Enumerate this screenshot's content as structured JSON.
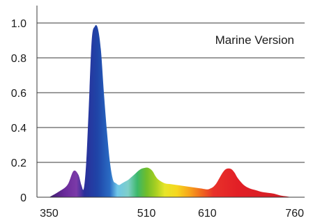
{
  "chart_data": {
    "type": "area",
    "annotation": "Marine Version",
    "x_ticks": [
      350,
      510,
      610,
      760
    ],
    "y_ticks": [
      0,
      0.2,
      0.4,
      0.6,
      0.8,
      1.0
    ],
    "y_tick_labels": [
      "0",
      "0.2",
      "0.4",
      "0.6",
      "0.8",
      "1.0"
    ],
    "xlim": [
      330,
      770
    ],
    "ylim": [
      0,
      1.1
    ],
    "grid": "horizontal",
    "series": [
      {
        "x": [
          350,
          365,
          380,
          390,
          398,
          403,
          407,
          411,
          415,
          420,
          425,
          430,
          435,
          440,
          445,
          450,
          455,
          460,
          465,
          470,
          475,
          480,
          490,
          500,
          510,
          515,
          520,
          525,
          530,
          540,
          550,
          560,
          570,
          580,
          590,
          600,
          610,
          615,
          620,
          625,
          630,
          635,
          640,
          645,
          650,
          655,
          660,
          670,
          680,
          690,
          700,
          710,
          720,
          730,
          740,
          750,
          760
        ],
        "y": [
          0.0,
          0.03,
          0.07,
          0.15,
          0.13,
          0.07,
          0.05,
          0.2,
          0.5,
          0.9,
          0.98,
          0.97,
          0.85,
          0.6,
          0.38,
          0.2,
          0.1,
          0.08,
          0.07,
          0.08,
          0.09,
          0.1,
          0.13,
          0.16,
          0.17,
          0.165,
          0.15,
          0.12,
          0.1,
          0.08,
          0.075,
          0.07,
          0.065,
          0.06,
          0.055,
          0.05,
          0.045,
          0.05,
          0.06,
          0.08,
          0.11,
          0.14,
          0.16,
          0.165,
          0.16,
          0.14,
          0.11,
          0.07,
          0.05,
          0.04,
          0.03,
          0.025,
          0.02,
          0.01,
          0.005,
          0.0,
          0.0
        ]
      }
    ],
    "colors": {
      "grid": "#3a3a3a",
      "axis": "#3a3a3a",
      "spectrum_stops": [
        {
          "wl": 350,
          "color": "#3b1a6e"
        },
        {
          "wl": 375,
          "color": "#6a2a9a"
        },
        {
          "wl": 395,
          "color": "#7b3aa8"
        },
        {
          "wl": 408,
          "color": "#2a2f9a"
        },
        {
          "wl": 430,
          "color": "#1f45a8"
        },
        {
          "wl": 450,
          "color": "#2a6cc4"
        },
        {
          "wl": 462,
          "color": "#6fc6e8"
        },
        {
          "wl": 480,
          "color": "#7ecfc8"
        },
        {
          "wl": 495,
          "color": "#3cb86a"
        },
        {
          "wl": 510,
          "color": "#6fbd2a"
        },
        {
          "wl": 525,
          "color": "#a6cf22"
        },
        {
          "wl": 540,
          "color": "#e7e52a"
        },
        {
          "wl": 560,
          "color": "#f6d71e"
        },
        {
          "wl": 580,
          "color": "#f7a61c"
        },
        {
          "wl": 600,
          "color": "#f06a1e"
        },
        {
          "wl": 620,
          "color": "#e8322a"
        },
        {
          "wl": 660,
          "color": "#e21f26"
        },
        {
          "wl": 760,
          "color": "#cf1f25"
        }
      ]
    }
  }
}
